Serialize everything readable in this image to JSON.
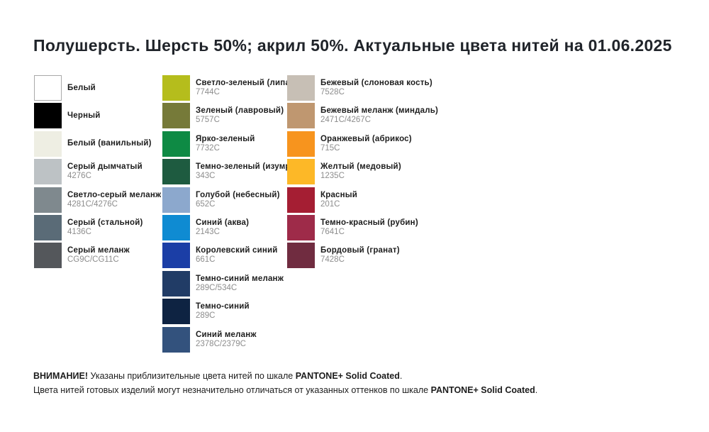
{
  "title": "Полушерсть. Шерсть 50%; акрил 50%. Актуальные цвета нитей на 01.06.2025",
  "meta": {
    "white_swatch_border": "#a9a9a9"
  },
  "columns": [
    {
      "rows": [
        {
          "name": "Белый",
          "code": "",
          "color": "#ffffff"
        },
        {
          "name": "Черный",
          "code": "",
          "color": "#000000"
        },
        {
          "name": "Белый (ванильный)",
          "code": "",
          "color": "#eeeee3"
        },
        {
          "name": "Серый дымчатый",
          "code": "4276C",
          "color": "#bdc2c5"
        },
        {
          "name": "Светло-серый меланж",
          "code": "4281C/4276C",
          "color": "#7f898e"
        },
        {
          "name": "Серый (стальной)",
          "code": "4136C",
          "color": "#5a6b77"
        },
        {
          "name": "Серый меланж",
          "code": "CG9C/CG11C",
          "color": "#54575b"
        }
      ]
    },
    {
      "rows": [
        {
          "name": "Светло-зеленый (липа)",
          "code": "7744C",
          "color": "#b5bd1c"
        },
        {
          "name": "Зеленый (лавровый)",
          "code": "5757C",
          "color": "#767a39"
        },
        {
          "name": "Ярко-зеленый",
          "code": "7732C",
          "color": "#0e8a44"
        },
        {
          "name": "Темно-зеленый (изумруд)",
          "code": "343C",
          "color": "#1e5b40"
        },
        {
          "name": "Голубой (небесный)",
          "code": "652C",
          "color": "#8ca8cd"
        },
        {
          "name": "Синий (аква)",
          "code": "2143C",
          "color": "#0f8bd2"
        },
        {
          "name": "Королевский синий",
          "code": "661C",
          "color": "#1b3ea6"
        },
        {
          "name": "Темно-синий меланж",
          "code": "289C/534C",
          "color": "#213c66"
        },
        {
          "name": "Темно-синий",
          "code": "289C",
          "color": "#0e2342"
        },
        {
          "name": "Синий меланж",
          "code": "2378C/2379C",
          "color": "#33527d"
        }
      ]
    },
    {
      "rows": [
        {
          "name": "Бежевый (слоновая кость)",
          "code": "7528C",
          "color": "#c7bfb5"
        },
        {
          "name": "Бежевый меланж (миндаль)",
          "code": "2471C/4267C",
          "color": "#bf9770"
        },
        {
          "name": "Оранжевый (абрикос)",
          "code": "715C",
          "color": "#f7941e"
        },
        {
          "name": "Желтый (медовый)",
          "code": "1235C",
          "color": "#fdb827"
        },
        {
          "name": "Красный",
          "code": "201C",
          "color": "#a51e33"
        },
        {
          "name": "Темно-красный (рубин)",
          "code": "7641C",
          "color": "#9e2b49"
        },
        {
          "name": "Бордовый (гранат)",
          "code": "7428C",
          "color": "#702c40"
        }
      ]
    }
  ],
  "footer": {
    "line1": [
      {
        "text": "ВНИМАНИЕ!"
      },
      {
        "text": " Указаны приблизительные цвета нитей по шкале "
      },
      {
        "text": "PANTONE+ Solid Coated"
      },
      {
        "text": "."
      }
    ],
    "line2": [
      {
        "text": "Цвета нитей готовых изделий могут незначительно отличаться от указанных оттенков по шкале "
      },
      {
        "text": "PANTONE+ Solid Coated"
      },
      {
        "text": "."
      }
    ]
  }
}
